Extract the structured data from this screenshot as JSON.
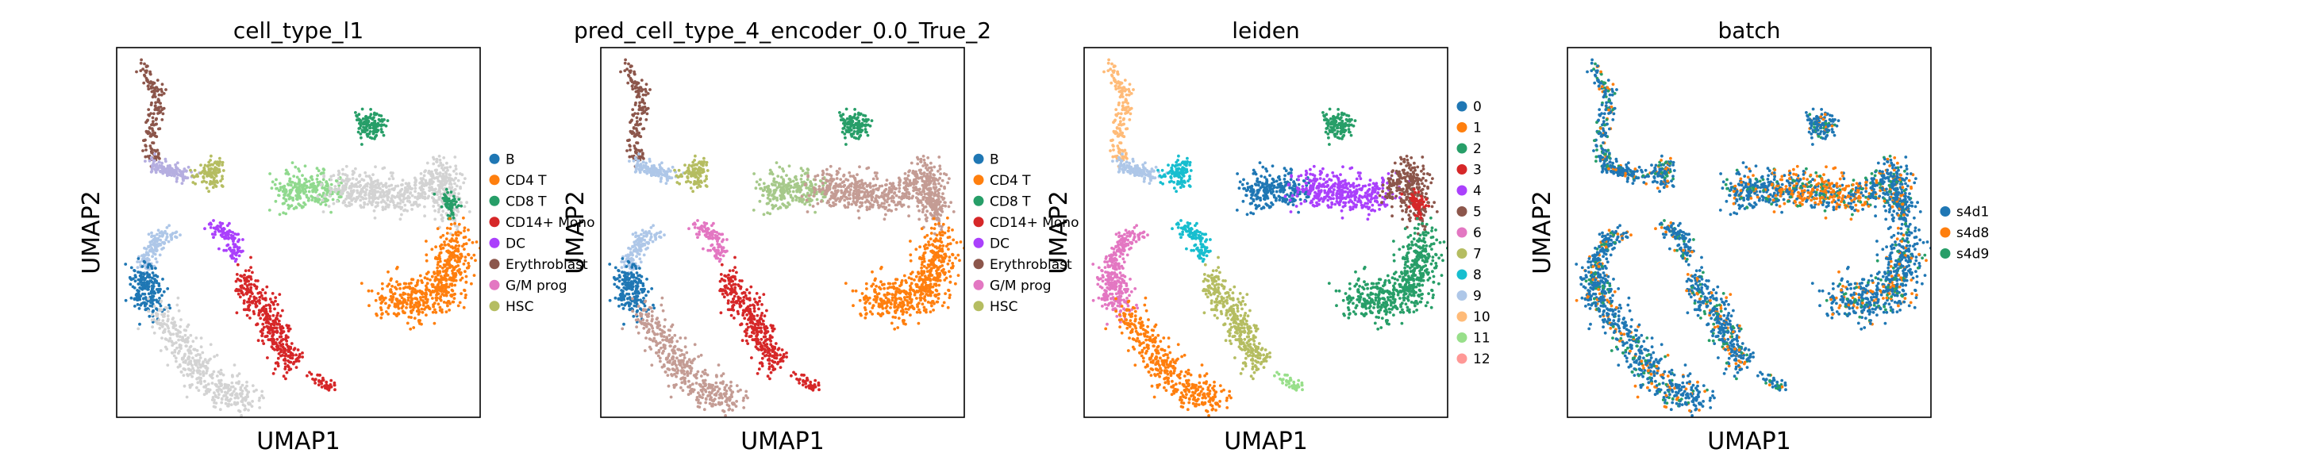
{
  "figure": {
    "palette": {
      "B": "#1f77b4",
      "CD4 T": "#ff7f0e",
      "CD8 T": "#279e68",
      "CD14+ Mono": "#d62728",
      "DC": "#aa40fc",
      "Erythroblast": "#8c564b",
      "G/M prog": "#e377c2",
      "HSC": "#b5bd61",
      "background_gray": "#d3d3d3"
    }
  },
  "chart_data": [
    {
      "type": "scatter",
      "title": "cell_type_l1",
      "xlabel": "UMAP1",
      "ylabel": "UMAP2",
      "ticks": false,
      "legend_position": "right",
      "legend": [
        {
          "label": "B",
          "color": "#1f77b4"
        },
        {
          "label": "CD4 T",
          "color": "#ff7f0e"
        },
        {
          "label": "CD8 T",
          "color": "#279e68"
        },
        {
          "label": "CD14+ Mono",
          "color": "#d62728"
        },
        {
          "label": "DC",
          "color": "#aa40fc"
        },
        {
          "label": "Erythroblast",
          "color": "#8c564b"
        },
        {
          "label": "G/M prog",
          "color": "#e377c2"
        },
        {
          "label": "HSC",
          "color": "#b5bd61"
        }
      ],
      "clusters": {
        "arc_top": "#8c564b",
        "arc_mid": "#b5aee0",
        "arc_hsc": "#b5bd61",
        "cd8_blob": "#279e68",
        "bridge_left": "#90d98e",
        "bridge_right": "#d3d3d3",
        "right_top": "#d3d3d3",
        "right_tip": "#279e68",
        "cd4_mass": "#ff7f0e",
        "lower_left_top": "#aec7e8",
        "lower_left_b": "#1f77b4",
        "lower_left_body": "#d3d3d3",
        "dc_head": "#aa40fc",
        "mono_stream": "#d62728",
        "mono_tail": "#d62728"
      }
    },
    {
      "type": "scatter",
      "title": "pred_cell_type_4_encoder_0.0_True_2",
      "xlabel": "UMAP1",
      "ylabel": "UMAP2",
      "ticks": false,
      "legend_position": "right",
      "legend": [
        {
          "label": "B",
          "color": "#1f77b4"
        },
        {
          "label": "CD4 T",
          "color": "#ff7f0e"
        },
        {
          "label": "CD8 T",
          "color": "#279e68"
        },
        {
          "label": "CD14+ Mono",
          "color": "#d62728"
        },
        {
          "label": "DC",
          "color": "#aa40fc"
        },
        {
          "label": "Erythroblast",
          "color": "#8c564b"
        },
        {
          "label": "G/M prog",
          "color": "#e377c2"
        },
        {
          "label": "HSC",
          "color": "#b5bd61"
        }
      ],
      "clusters": {
        "arc_top": "#8c564b",
        "arc_mid": "#aec7e8",
        "arc_hsc": "#b5bd61",
        "cd8_blob": "#279e68",
        "bridge_left": "#a6c98a",
        "bridge_right": "#c49c94",
        "right_top": "#c49c94",
        "right_tip": "#c49c94",
        "cd4_mass": "#ff7f0e",
        "lower_left_top": "#aec7e8",
        "lower_left_b": "#1f77b4",
        "lower_left_body": "#c49c94",
        "dc_head": "#e377c2",
        "mono_stream": "#d62728",
        "mono_tail": "#d62728"
      }
    },
    {
      "type": "scatter",
      "title": "leiden",
      "xlabel": "UMAP1",
      "ylabel": "UMAP2",
      "ticks": false,
      "legend_position": "right",
      "legend": [
        {
          "label": "0",
          "color": "#1f77b4"
        },
        {
          "label": "1",
          "color": "#ff7f0e"
        },
        {
          "label": "2",
          "color": "#279e68"
        },
        {
          "label": "3",
          "color": "#d62728"
        },
        {
          "label": "4",
          "color": "#aa40fc"
        },
        {
          "label": "5",
          "color": "#8c564b"
        },
        {
          "label": "6",
          "color": "#e377c2"
        },
        {
          "label": "7",
          "color": "#b5bd61"
        },
        {
          "label": "8",
          "color": "#17becf"
        },
        {
          "label": "9",
          "color": "#aec7e8"
        },
        {
          "label": "10",
          "color": "#ffbb78"
        },
        {
          "label": "11",
          "color": "#98df8a"
        },
        {
          "label": "12",
          "color": "#ff9896"
        }
      ],
      "clusters": {
        "arc_top": "#ffbb78",
        "arc_mid": "#aec7e8",
        "arc_hsc": "#17becf",
        "cd8_blob": "#279e68",
        "bridge_left": "#1f77b4",
        "bridge_right": "#aa40fc",
        "right_top": "#8c564b",
        "right_tip": "#d62728",
        "cd4_mass": "#279e68",
        "lower_left_top": "#e377c2",
        "lower_left_b": "#e377c2",
        "lower_left_body": "#ff7f0e",
        "dc_head": "#17becf",
        "mono_stream": "#b5bd61",
        "mono_tail": "#98df8a"
      }
    },
    {
      "type": "scatter",
      "title": "batch",
      "xlabel": "UMAP1",
      "ylabel": "UMAP2",
      "ticks": false,
      "legend_position": "right",
      "legend": [
        {
          "label": "s4d1",
          "color": "#1f77b4"
        },
        {
          "label": "s4d8",
          "color": "#ff7f0e"
        },
        {
          "label": "s4d9",
          "color": "#279e68"
        }
      ],
      "clusters": {
        "arc_top": "#1f77b4",
        "arc_mid": "#1f77b4",
        "arc_hsc": "#1f77b4",
        "cd8_blob": "#1f77b4",
        "bridge_left": "#1f77b4",
        "bridge_right": "#ff7f0e",
        "right_top": "#1f77b4",
        "right_tip": "#1f77b4",
        "cd4_mass": "#1f77b4",
        "lower_left_top": "#1f77b4",
        "lower_left_b": "#1f77b4",
        "lower_left_body": "#1f77b4",
        "dc_head": "#1f77b4",
        "mono_stream": "#1f77b4",
        "mono_tail": "#1f77b4"
      },
      "batch_mix": true
    }
  ]
}
